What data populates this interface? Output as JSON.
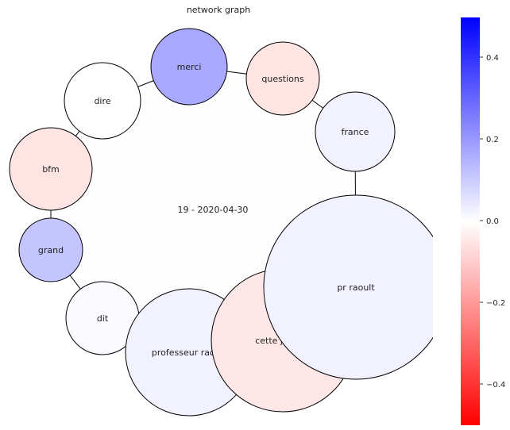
{
  "title": "network graph",
  "center_label": "19 - 2020-04-30",
  "colorbar": {
    "ticks": [
      "0.4",
      "0.2",
      "0.0",
      "−0.2",
      "−0.4"
    ],
    "max_color": "#0000ff",
    "mid_color": "#ffffff",
    "min_color": "#ff0000"
  },
  "nodes": [
    {
      "id": "merci",
      "label": "merci",
      "color": "#a8a8ff"
    },
    {
      "id": "questions",
      "label": "questions",
      "color": "#ffe4e4"
    },
    {
      "id": "france",
      "label": "france",
      "color": "#f1f1ff"
    },
    {
      "id": "dire",
      "label": "dire",
      "color": "#ffffff"
    },
    {
      "id": "bfm",
      "label": "bfm",
      "color": "#ffe4e4"
    },
    {
      "id": "grand",
      "label": "grand",
      "color": "#c4c4ff"
    },
    {
      "id": "dit",
      "label": "dit",
      "color": "#fafaff"
    },
    {
      "id": "professeur-raoult",
      "label": "professeur raoult",
      "color": "#f1f1ff"
    },
    {
      "id": "cette-journal",
      "label": "cette journal",
      "color": "#ffe7e7"
    },
    {
      "id": "pr-raoult",
      "label": "pr  raoult",
      "color": "#f1f1ff"
    }
  ]
}
